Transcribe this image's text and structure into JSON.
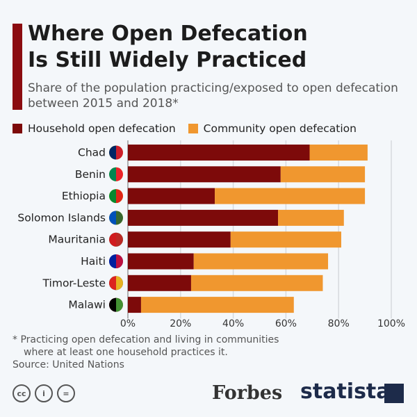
{
  "title_lines": [
    "Where Open Defecation",
    "Is Still Widely Practiced"
  ],
  "subtitle": "Share of the population practicing/exposed to open defecation between 2015 and 2018*",
  "footnote_lines": [
    "* Practicing open defecation and living in communities",
    "where at least one household practices it."
  ],
  "source": "Source: United Nations",
  "brands": {
    "forbes": "Forbes",
    "statista": "statista",
    "license_icons": [
      "cc-icon",
      "by-icon",
      "nd-icon"
    ]
  },
  "colors": {
    "household": "#7d0a0a",
    "community": "#f0972f",
    "accent": "#8b0c10"
  },
  "chart_data": {
    "type": "bar",
    "orientation": "horizontal",
    "stacked": true,
    "categories": [
      "Chad",
      "Benin",
      "Ethiopia",
      "Solomon Islands",
      "Mauritania",
      "Haiti",
      "Timor-Leste",
      "Malawi"
    ],
    "series": [
      {
        "name": "Household open defecation",
        "values": [
          69,
          58,
          33,
          57,
          39,
          25,
          24,
          5
        ]
      },
      {
        "name": "Community open defecation",
        "values": [
          22,
          32,
          57,
          25,
          42,
          51,
          50,
          58
        ]
      }
    ],
    "xlim": [
      0,
      100
    ],
    "xticks": [
      "0%",
      "20%",
      "40%",
      "60%",
      "80%",
      "100%"
    ],
    "grid": true,
    "legend": "top-left"
  }
}
